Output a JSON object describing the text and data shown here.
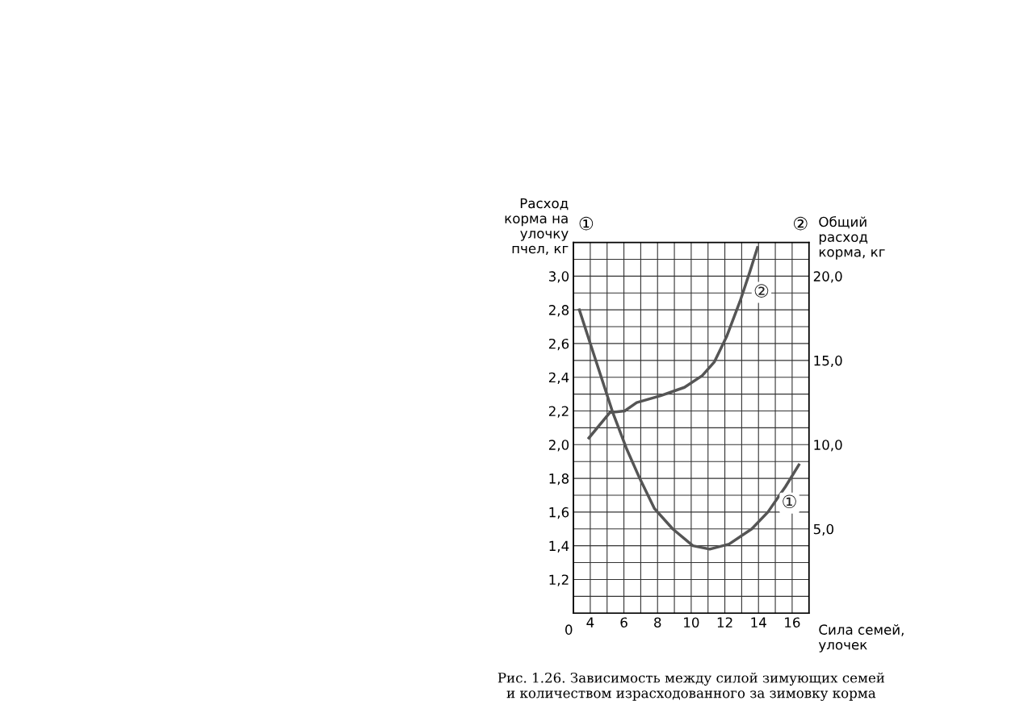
{
  "chart_data": {
    "type": "line",
    "ylabel": "Расход\nкорма на\nулочку\nпчел, кг",
    "y2label": "Общий\nрасход\nкорма, кг",
    "xlabel": "Сила семей,\nулочек",
    "x": [
      3.35,
      4.1,
      5.34,
      6.14,
      6.94,
      7.82,
      8.9,
      10.1,
      11.1,
      12.25,
      13.6,
      14.56,
      15.6,
      16.4
    ],
    "series": [
      {
        "name": "①",
        "color": "#555555",
        "values": [
          2.8,
          2.57,
          2.19,
          1.98,
          1.8,
          1.62,
          1.5,
          1.4,
          1.38,
          1.41,
          1.5,
          1.6,
          1.75,
          1.88
        ]
      },
      {
        "name": "②",
        "color": "#555555",
        "axis": "y2",
        "x": [
          3.92,
          5.16,
          6.05,
          6.76,
          8.18,
          9.6,
          10.66,
          11.37,
          12.1,
          12.9,
          13.5,
          13.94
        ],
        "values": [
          10.4,
          11.9,
          12.0,
          12.5,
          12.9,
          13.4,
          14.1,
          14.9,
          16.4,
          18.5,
          20.3,
          21.7
        ]
      }
    ],
    "xlim": [
      3,
      17
    ],
    "xticks": [
      4,
      {
        "value": 5,
        "label": null
      },
      6,
      {
        "value": 7,
        "label": null
      },
      8,
      {
        "value": 9,
        "label": null
      },
      10,
      {
        "value": 11,
        "label": null
      },
      12,
      {
        "value": 13,
        "label": null
      },
      14,
      {
        "value": 15,
        "label": null
      },
      16
    ],
    "ylim": [
      1.0,
      3.2
    ],
    "yticks": [
      {
        "value": 1.1,
        "label": null
      },
      {
        "value": 1.2,
        "label": "1,2"
      },
      {
        "value": 1.3,
        "label": null
      },
      {
        "value": 1.4,
        "label": "1,4"
      },
      {
        "value": 1.5,
        "label": null
      },
      {
        "value": 1.6,
        "label": "1,6"
      },
      {
        "value": 1.7,
        "label": null
      },
      {
        "value": 1.8,
        "label": "1,8"
      },
      {
        "value": 1.9,
        "label": null
      },
      {
        "value": 2.0,
        "label": "2,0"
      },
      {
        "value": 2.1,
        "label": null
      },
      {
        "value": 2.2,
        "label": "2,2"
      },
      {
        "value": 2.3,
        "label": null
      },
      {
        "value": 2.4,
        "label": "2,4"
      },
      {
        "value": 2.5,
        "label": null
      },
      {
        "value": 2.6,
        "label": "2,6"
      },
      {
        "value": 2.7,
        "label": null
      },
      {
        "value": 2.8,
        "label": "2,8"
      },
      {
        "value": 2.9,
        "label": null
      },
      {
        "value": 3.0,
        "label": "3,0"
      },
      {
        "value": 3.1,
        "label": null
      }
    ],
    "y2lim": [
      0,
      22
    ],
    "y2ticks": [
      {
        "value": 5,
        "label": "5,0"
      },
      {
        "value": 10,
        "label": "10,0"
      },
      {
        "value": 15,
        "label": "15,0"
      },
      {
        "value": 20,
        "label": "20,0"
      }
    ],
    "grid": true,
    "marker": "none",
    "line_style": "solid",
    "legend": false,
    "annotations": [
      "①",
      "②",
      "0",
      "Рис. 1.26. Зависимость между силой зимующих семей\nи количеством израсходованного за зимовку корма"
    ]
  }
}
